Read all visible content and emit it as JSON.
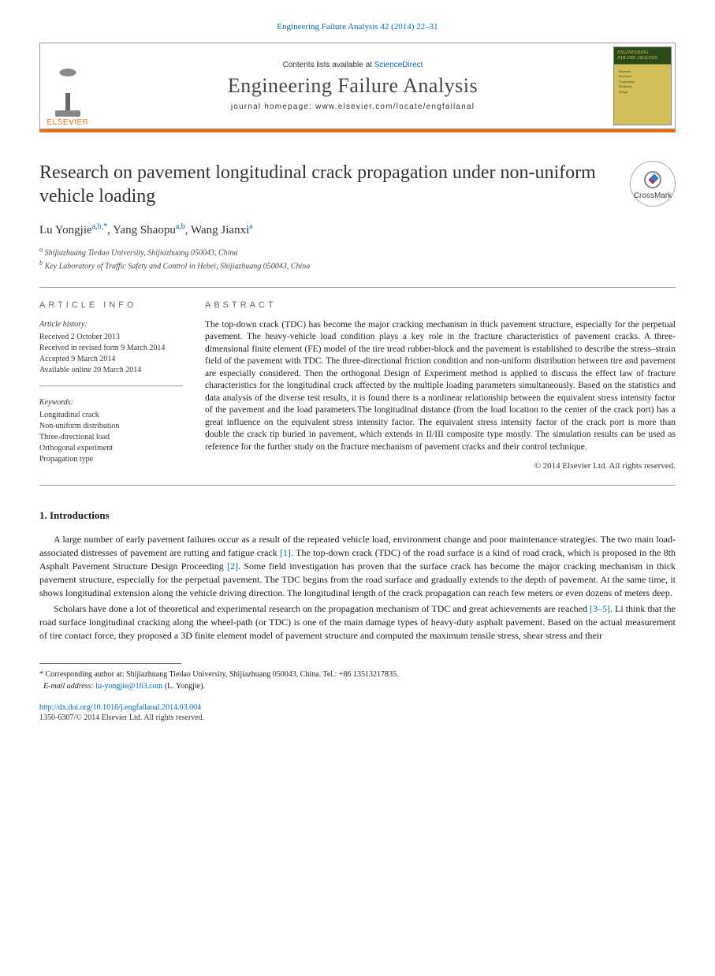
{
  "top_reference": "Engineering Failure Analysis 42 (2014) 22–31",
  "header": {
    "contents_prefix": "Contents lists available at ",
    "contents_link": "ScienceDirect",
    "journal_name": "Engineering Failure Analysis",
    "homepage_label": "journal homepage: www.elsevier.com/locate/engfailanal",
    "publisher": "ELSEVIER",
    "cover_title": "ENGINEERING FAILURE ANALYSIS",
    "cover_lines": "Materials\nStructures\nComponents\nReliability\nDesign"
  },
  "title": "Research on pavement longitudinal crack propagation under non-uniform vehicle loading",
  "crossmark_label": "CrossMark",
  "authors": {
    "a1_name": "Lu Yongjie",
    "a1_sup": "a,b,*",
    "a2_name": "Yang Shaopu",
    "a2_sup": "a,b",
    "a3_name": "Wang Jianxi",
    "a3_sup": "a"
  },
  "affiliations": {
    "a": "Shijiazhuang Tiedao University, Shijiazhuang 050043, China",
    "b": "Key Laboratory of Traffic Safety and Control in Hebei, Shijiazhuang 050043, China"
  },
  "info": {
    "header": "ARTICLE INFO",
    "hist_label": "Article history:",
    "hist1": "Received 2 October 2013",
    "hist2": "Received in revised form 9 March 2014",
    "hist3": "Accepted 9 March 2014",
    "hist4": "Available online 20 March 2014",
    "kw_label": "Keywords:",
    "kw1": "Longitudinal crack",
    "kw2": "Non-uniform distribution",
    "kw3": "Three-directional load",
    "kw4": "Orthogonal experiment",
    "kw5": "Propagation type"
  },
  "abstract": {
    "header": "ABSTRACT",
    "body": "The top-down crack (TDC) has become the major cracking mechanism in thick pavement structure, especially for the perpetual pavement. The heavy-vehicle load condition plays a key role in the fracture characteristics of pavement cracks. A three-dimensional finite element (FE) model of the tire tread rubber-block and the pavement is established to describe the stress–strain field of the pavement with TDC. The three-directional friction condition and non-uniform distribution between tire and pavement are especially considered. Then the orthogonal Design of Experiment method is applied to discuss the effect law of fracture characteristics for the longitudinal crack affected by the multiple loading parameters simultaneously. Based on the statistics and data analysis of the diverse test results, it is found there is a nonlinear relationship between the equivalent stress intensity factor of the pavement and the load parameters.The longitudinal distance (from the load location to the center of the crack port) has a great influence on the equivalent stress intensity factor. The equivalent stress intensity factor of the crack port is more than double the crack tip buried in pavement, which extends in II/III composite type mostly. The simulation results can be used as reference for the further study on the fracture mechanism of pavement cracks and their control technique.",
    "copyright": "© 2014 Elsevier Ltd. All rights reserved."
  },
  "section1": {
    "heading": "1. Introductions",
    "p1_a": "A large number of early pavement failures occur as a result of the repeated vehicle load, environment change and poor maintenance strategies. The two main load-associated distresses of pavement are rutting and fatigue crack ",
    "p1_ref1": "[1]",
    "p1_b": ". The top-down crack (TDC) of the road surface is a kind of road crack, which is proposed in the 8th Asphalt Pavement Structure Design Proceeding ",
    "p1_ref2": "[2]",
    "p1_c": ". Some field investigation has proven that the surface crack has become the major cracking mechanism in thick pavement structure, especially for the perpetual pavement. The TDC begins from the road surface and gradually extends to the depth of pavement. At the same time, it shows longitudinal extension along the vehicle driving direction. The longitudinal length of the crack propagation can reach few meters or even dozens of meters deep.",
    "p2_a": "Scholars have done a lot of theoretical and experimental research on the propagation mechanism of TDC and great achievements are reached ",
    "p2_ref1": "[3–5]",
    "p2_b": ". Li think that the road surface longitudinal cracking along the wheel-path (or TDC) is one of the main damage types of heavy-duty asphalt pavement. Based on the actual measurement of tire contact force, they proposed a 3D finite element model of pavement structure and computed the maximum tensile stress, shear stress and their"
  },
  "footnote": {
    "corr": "* Corresponding author at: Shijiazhuang Tiedao University, Shijiazhuang 050043, China. Tel.: +86 13513217835.",
    "email_label": "E-mail address: ",
    "email": "lu-yongjie@163.com",
    "email_suffix": " (L. Yongjie)."
  },
  "doi": "http://dx.doi.org/10.1016/j.engfailanal.2014.03.004",
  "issn_line": "1350-6307/© 2014 Elsevier Ltd. All rights reserved."
}
